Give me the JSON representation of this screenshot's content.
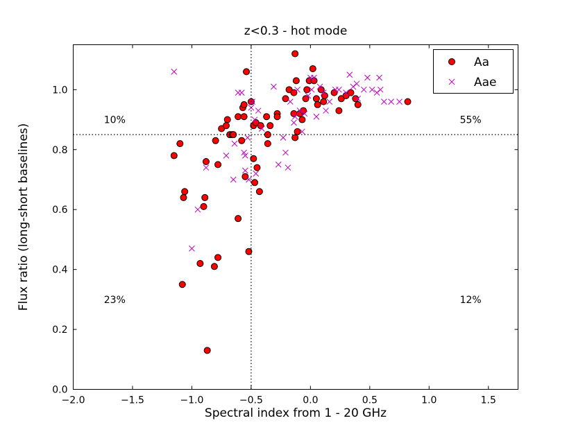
{
  "chart_data": {
    "type": "scatter",
    "title": "z<0.3 - hot mode",
    "xlabel": "Spectral index from 1 - 20 GHz",
    "ylabel": "Flux ratio (long-short baselines)",
    "xlim": [
      -2.0,
      1.75
    ],
    "ylim": [
      0.0,
      1.15
    ],
    "xticks": [
      -2.0,
      -1.5,
      -1.0,
      -0.5,
      0.0,
      0.5,
      1.0,
      1.5
    ],
    "xtick_labels": [
      "−2.0",
      "−1.5",
      "−1.0",
      "−0.5",
      "0.0",
      "0.5",
      "1.0",
      "1.5"
    ],
    "yticks": [
      0.0,
      0.2,
      0.4,
      0.6,
      0.8,
      1.0
    ],
    "ytick_labels": [
      "0.0",
      "0.2",
      "0.4",
      "0.6",
      "0.8",
      "1.0"
    ],
    "grid": false,
    "legend_position": "top-right",
    "reference_lines": [
      {
        "axis": "x",
        "value": -0.5,
        "style": "dotted"
      },
      {
        "axis": "y",
        "value": 0.85,
        "style": "dotted"
      }
    ],
    "annotations": [
      {
        "text": "10%",
        "x": -1.65,
        "y": 0.9
      },
      {
        "text": "55%",
        "x": 1.35,
        "y": 0.9
      },
      {
        "text": "23%",
        "x": -1.65,
        "y": 0.3
      },
      {
        "text": "12%",
        "x": 1.35,
        "y": 0.3
      }
    ],
    "series": [
      {
        "name": "Aa",
        "marker": "circle",
        "color": "#ff0000",
        "edge_color": "#000000",
        "points": [
          [
            -1.15,
            0.78
          ],
          [
            -1.1,
            0.82
          ],
          [
            -1.07,
            0.64
          ],
          [
            -1.06,
            0.66
          ],
          [
            -1.08,
            0.35
          ],
          [
            -0.93,
            0.42
          ],
          [
            -0.9,
            0.61
          ],
          [
            -0.89,
            0.64
          ],
          [
            -0.88,
            0.76
          ],
          [
            -0.87,
            0.13
          ],
          [
            -0.8,
            0.83
          ],
          [
            -0.81,
            0.41
          ],
          [
            -0.78,
            0.44
          ],
          [
            -0.78,
            0.75
          ],
          [
            -0.75,
            0.87
          ],
          [
            -0.71,
            0.88
          ],
          [
            -0.7,
            0.9
          ],
          [
            -0.68,
            0.85
          ],
          [
            -0.66,
            0.85
          ],
          [
            -0.65,
            0.85
          ],
          [
            -0.61,
            0.91
          ],
          [
            -0.61,
            0.57
          ],
          [
            -0.58,
            0.83
          ],
          [
            -0.57,
            0.94
          ],
          [
            -0.56,
            0.95
          ],
          [
            -0.56,
            0.91
          ],
          [
            -0.55,
            0.71
          ],
          [
            -0.54,
            1.06
          ],
          [
            -0.52,
            0.46
          ],
          [
            -0.5,
            0.96
          ],
          [
            -0.48,
            0.88
          ],
          [
            -0.48,
            0.77
          ],
          [
            -0.47,
            0.69
          ],
          [
            -0.46,
            0.89
          ],
          [
            -0.45,
            0.74
          ],
          [
            -0.43,
            0.66
          ],
          [
            -0.42,
            0.88
          ],
          [
            -0.37,
            0.91
          ],
          [
            -0.36,
            0.82
          ],
          [
            -0.36,
            0.85
          ],
          [
            -0.34,
            0.88
          ],
          [
            -0.28,
            0.92
          ],
          [
            -0.28,
            0.91
          ],
          [
            -0.21,
            0.97
          ],
          [
            -0.18,
            1.0
          ],
          [
            -0.14,
            0.99
          ],
          [
            -0.14,
            0.92
          ],
          [
            -0.13,
            0.84
          ],
          [
            -0.13,
            1.12
          ],
          [
            -0.12,
            1.03
          ],
          [
            -0.11,
            0.86
          ],
          [
            -0.09,
            0.92
          ],
          [
            -0.07,
            0.9
          ],
          [
            -0.06,
            0.93
          ],
          [
            -0.04,
            0.97
          ],
          [
            -0.03,
            1.0
          ],
          [
            -0.01,
            1.03
          ],
          [
            0.02,
            1.07
          ],
          [
            0.03,
            1.03
          ],
          [
            0.05,
            0.97
          ],
          [
            0.06,
            0.95
          ],
          [
            0.09,
            1.0
          ],
          [
            0.11,
            0.96
          ],
          [
            0.12,
            0.98
          ],
          [
            0.2,
            0.99
          ],
          [
            0.24,
            0.93
          ],
          [
            0.26,
            0.97
          ],
          [
            0.3,
            0.98
          ],
          [
            0.34,
            0.99
          ],
          [
            0.38,
            0.97
          ],
          [
            0.4,
            0.95
          ],
          [
            0.82,
            0.96
          ]
        ]
      },
      {
        "name": "Aae",
        "marker": "x",
        "color": "#bf00bf",
        "points": [
          [
            -1.15,
            1.06
          ],
          [
            -1.0,
            0.47
          ],
          [
            -0.95,
            0.6
          ],
          [
            -0.88,
            0.74
          ],
          [
            -0.71,
            0.78
          ],
          [
            -0.65,
            0.7
          ],
          [
            -0.64,
            0.82
          ],
          [
            -0.61,
            0.99
          ],
          [
            -0.58,
            0.99
          ],
          [
            -0.56,
            0.79
          ],
          [
            -0.55,
            0.73
          ],
          [
            -0.55,
            0.78
          ],
          [
            -0.53,
            0.84
          ],
          [
            -0.52,
            0.7
          ],
          [
            -0.5,
            0.94
          ],
          [
            -0.49,
            0.96
          ],
          [
            -0.47,
            0.9
          ],
          [
            -0.46,
            0.72
          ],
          [
            -0.44,
            0.93
          ],
          [
            -0.41,
            0.87
          ],
          [
            -0.31,
            1.01
          ],
          [
            -0.27,
            0.75
          ],
          [
            -0.23,
            0.84
          ],
          [
            -0.21,
            0.79
          ],
          [
            -0.19,
            0.74
          ],
          [
            -0.17,
            0.96
          ],
          [
            -0.14,
            0.89
          ],
          [
            -0.13,
            0.91
          ],
          [
            -0.11,
            1.0
          ],
          [
            -0.09,
            0.93
          ],
          [
            -0.07,
            0.86
          ],
          [
            -0.05,
            0.92
          ],
          [
            -0.02,
            0.98
          ],
          [
            0.0,
            1.04
          ],
          [
            0.01,
            1.0
          ],
          [
            0.03,
            1.04
          ],
          [
            0.05,
            0.91
          ],
          [
            0.08,
            1.01
          ],
          [
            0.11,
            0.99
          ],
          [
            0.13,
            0.93
          ],
          [
            0.16,
            0.96
          ],
          [
            0.21,
            1.0
          ],
          [
            0.24,
            1.0
          ],
          [
            0.3,
            0.99
          ],
          [
            0.33,
            1.05
          ],
          [
            0.36,
            1.01
          ],
          [
            0.39,
            1.02
          ],
          [
            0.4,
            0.97
          ],
          [
            0.45,
            1.0
          ],
          [
            0.48,
            1.04
          ],
          [
            0.52,
            1.0
          ],
          [
            0.56,
            0.99
          ],
          [
            0.58,
            1.04
          ],
          [
            0.59,
            1.0
          ],
          [
            0.62,
            0.96
          ],
          [
            0.68,
            0.96
          ],
          [
            0.75,
            0.96
          ]
        ]
      }
    ]
  }
}
